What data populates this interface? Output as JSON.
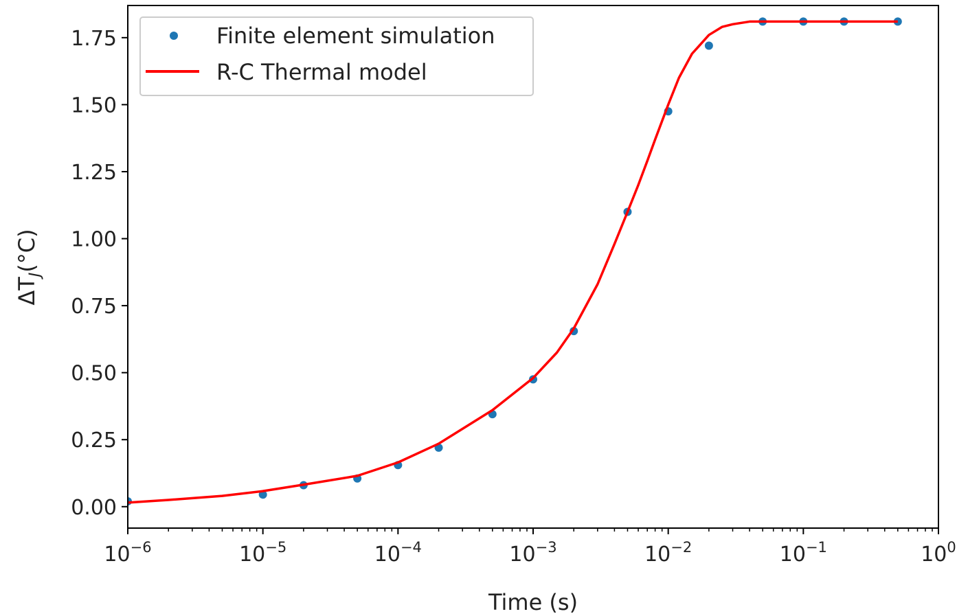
{
  "chart_data": {
    "type": "scatter",
    "title": "",
    "xlabel": "Time (s)",
    "ylabel_main": "ΔT",
    "ylabel_sub": "J",
    "ylabel_unit": "(°C)",
    "xscale": "log",
    "xlim": [
      1e-06,
      1
    ],
    "ylim": [
      -0.08,
      1.87
    ],
    "grid": false,
    "legend_position": "top-left",
    "x_ticks": [
      {
        "value": 1e-06,
        "base": "10",
        "exp": "−6"
      },
      {
        "value": 1e-05,
        "base": "10",
        "exp": "−5"
      },
      {
        "value": 0.0001,
        "base": "10",
        "exp": "−4"
      },
      {
        "value": 0.001,
        "base": "10",
        "exp": "−3"
      },
      {
        "value": 0.01,
        "base": "10",
        "exp": "−2"
      },
      {
        "value": 0.1,
        "base": "10",
        "exp": "−1"
      },
      {
        "value": 1,
        "base": "10",
        "exp": "0"
      }
    ],
    "y_ticks": [
      {
        "value": 0.0,
        "label": "0.00"
      },
      {
        "value": 0.25,
        "label": "0.25"
      },
      {
        "value": 0.5,
        "label": "0.50"
      },
      {
        "value": 0.75,
        "label": "0.75"
      },
      {
        "value": 1.0,
        "label": "1.00"
      },
      {
        "value": 1.25,
        "label": "1.25"
      },
      {
        "value": 1.5,
        "label": "1.50"
      },
      {
        "value": 1.75,
        "label": "1.75"
      }
    ],
    "series": [
      {
        "name": "Finite element simulation",
        "kind": "scatter",
        "color": "#1f77b4",
        "x": [
          1e-06,
          1e-05,
          2e-05,
          5e-05,
          0.0001,
          0.0002,
          0.0005,
          0.001,
          0.002,
          0.005,
          0.01,
          0.02,
          0.05,
          0.1,
          0.2,
          0.5
        ],
        "y": [
          0.02,
          0.045,
          0.08,
          0.105,
          0.155,
          0.22,
          0.345,
          0.475,
          0.655,
          1.1,
          1.475,
          1.72,
          1.81,
          1.81,
          1.81,
          1.81
        ]
      },
      {
        "name": "R-C Thermal model",
        "kind": "line",
        "color": "#ff0000",
        "x": [
          1e-06,
          2e-06,
          5e-06,
          1e-05,
          2e-05,
          5e-05,
          0.0001,
          0.0002,
          0.0005,
          0.001,
          0.0015,
          0.002,
          0.003,
          0.004,
          0.005,
          0.006,
          0.007,
          0.008,
          0.01,
          0.012,
          0.015,
          0.02,
          0.025,
          0.03,
          0.04,
          0.05,
          0.1,
          0.2,
          0.5
        ],
        "y": [
          0.015,
          0.025,
          0.04,
          0.058,
          0.082,
          0.115,
          0.165,
          0.235,
          0.36,
          0.48,
          0.575,
          0.665,
          0.83,
          0.98,
          1.1,
          1.2,
          1.29,
          1.37,
          1.5,
          1.6,
          1.69,
          1.76,
          1.79,
          1.8,
          1.81,
          1.81,
          1.81,
          1.81,
          1.81
        ]
      }
    ]
  }
}
